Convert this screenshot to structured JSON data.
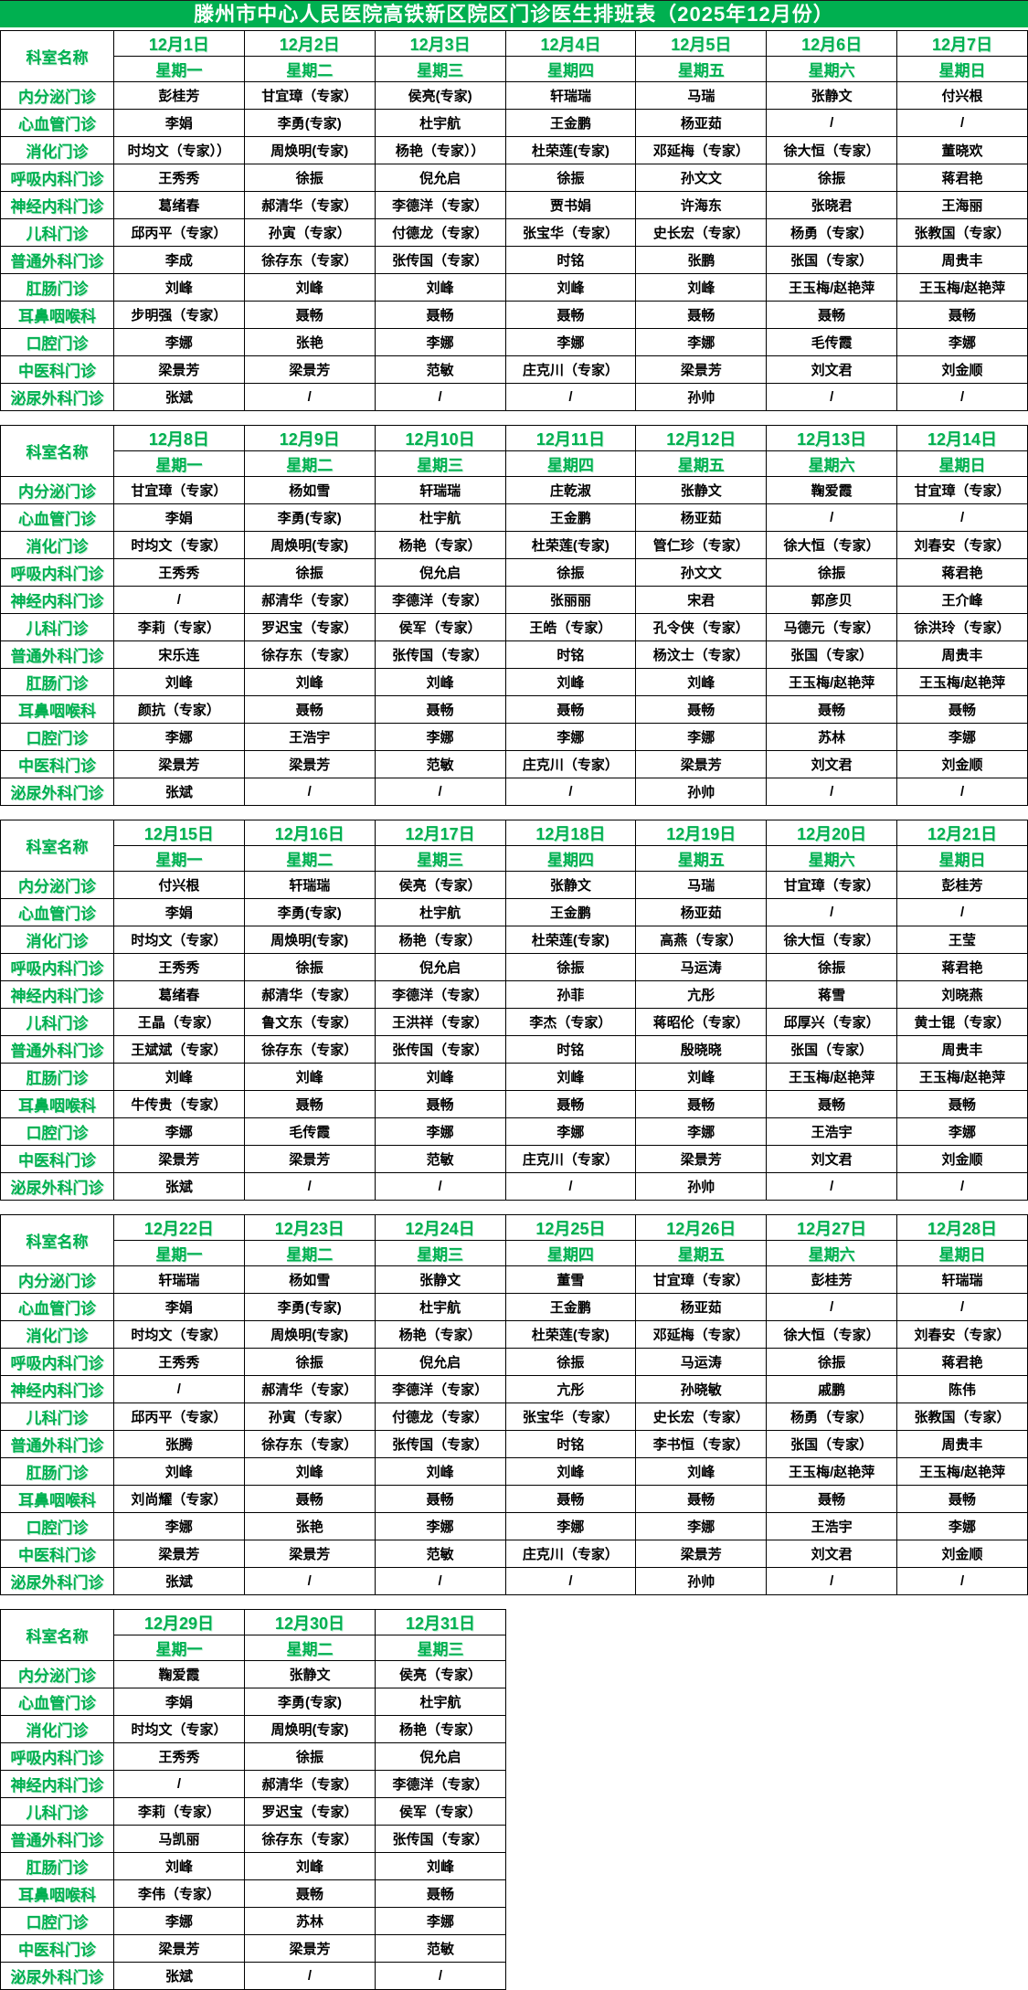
{
  "title": "滕州市中心人民医院高铁新区院区门诊医生排班表（2025年12月份）",
  "corner_header": "科室名称",
  "accent_color": "#00B050",
  "departments": [
    "内分泌门诊",
    "心血管门诊",
    "消化门诊",
    "呼吸内科门诊",
    "神经内科门诊",
    "儿科门诊",
    "普通外科门诊",
    "肛肠门诊",
    "耳鼻咽喉科",
    "口腔门诊",
    "中医科门诊",
    "泌尿外科门诊"
  ],
  "weeks": [
    {
      "days": [
        {
          "date": "12月1日",
          "weekday": "星期一"
        },
        {
          "date": "12月2日",
          "weekday": "星期二"
        },
        {
          "date": "12月3日",
          "weekday": "星期三"
        },
        {
          "date": "12月4日",
          "weekday": "星期四"
        },
        {
          "date": "12月5日",
          "weekday": "星期五"
        },
        {
          "date": "12月6日",
          "weekday": "星期六"
        },
        {
          "date": "12月7日",
          "weekday": "星期日"
        }
      ],
      "rows": [
        [
          "彭桂芳",
          "甘宜璋（专家）",
          "侯亮(专家)",
          "轩瑞瑞",
          "马瑞",
          "张静文",
          "付兴根"
        ],
        [
          "李娟",
          "李勇(专家)",
          "杜宇航",
          "王金鹏",
          "杨亚茹",
          "/",
          "/"
        ],
        [
          "时均文（专家））",
          "周焕明(专家)",
          "杨艳（专家））",
          "杜荣莲(专家)",
          "邓延梅（专家）",
          "徐大恒（专家）",
          "董晓欢"
        ],
        [
          "王秀秀",
          "徐振",
          "倪允启",
          "徐振",
          "孙文文",
          "徐振",
          "蒋君艳"
        ],
        [
          "葛绪春",
          "郝清华（专家）",
          "李德洋（专家）",
          "贾书娟",
          "许海东",
          "张晓君",
          "王海丽"
        ],
        [
          "邱丙平（专家）",
          "孙寅（专家）",
          "付德龙（专家）",
          "张宝华（专家）",
          "史长宏（专家）",
          "杨勇（专家）",
          "张教国（专家）"
        ],
        [
          "李成",
          "徐存东（专家）",
          "张传国（专家）",
          "时铭",
          "张鹏",
          "张国（专家）",
          "周贵丰"
        ],
        [
          "刘峰",
          "刘峰",
          "刘峰",
          "刘峰",
          "刘峰",
          "王玉梅/赵艳萍",
          "王玉梅/赵艳萍"
        ],
        [
          "步明强（专家）",
          "聂畅",
          "聂畅",
          "聂畅",
          "聂畅",
          "聂畅",
          "聂畅"
        ],
        [
          "李娜",
          "张艳",
          "李娜",
          "李娜",
          "李娜",
          "毛传霞",
          "李娜"
        ],
        [
          "梁景芳",
          "梁景芳",
          "范敏",
          "庄克川（专家）",
          "梁景芳",
          "刘文君",
          "刘金顺"
        ],
        [
          "张斌",
          "/",
          "/",
          "/",
          "孙帅",
          "/",
          "/"
        ]
      ]
    },
    {
      "days": [
        {
          "date": "12月8日",
          "weekday": "星期一"
        },
        {
          "date": "12月9日",
          "weekday": "星期二"
        },
        {
          "date": "12月10日",
          "weekday": "星期三"
        },
        {
          "date": "12月11日",
          "weekday": "星期四"
        },
        {
          "date": "12月12日",
          "weekday": "星期五"
        },
        {
          "date": "12月13日",
          "weekday": "星期六"
        },
        {
          "date": "12月14日",
          "weekday": "星期日"
        }
      ],
      "rows": [
        [
          "甘宜璋（专家）",
          "杨如雪",
          "轩瑞瑞",
          "庄乾淑",
          "张静文",
          "鞠爱霞",
          "甘宜璋（专家）"
        ],
        [
          "李娟",
          "李勇(专家)",
          "杜宇航",
          "王金鹏",
          "杨亚茹",
          "/",
          "/"
        ],
        [
          "时均文（专家）",
          "周焕明(专家)",
          "杨艳（专家）",
          "杜荣莲(专家)",
          "管仁珍（专家）",
          "徐大恒（专家）",
          "刘春安（专家）"
        ],
        [
          "王秀秀",
          "徐振",
          "倪允启",
          "徐振",
          "孙文文",
          "徐振",
          "蒋君艳"
        ],
        [
          "/",
          "郝清华（专家）",
          "李德洋（专家）",
          "张丽丽",
          "宋君",
          "郭彦贝",
          "王介峰"
        ],
        [
          "李莉（专家）",
          "罗迟宝（专家）",
          "侯军（专家）",
          "王皓（专家）",
          "孔令侠（专家）",
          "马德元（专家）",
          "徐洪玲（专家）"
        ],
        [
          "宋乐连",
          "徐存东（专家）",
          "张传国（专家）",
          "时铭",
          "杨汶士（专家）",
          "张国（专家）",
          "周贵丰"
        ],
        [
          "刘峰",
          "刘峰",
          "刘峰",
          "刘峰",
          "刘峰",
          "王玉梅/赵艳萍",
          "王玉梅/赵艳萍"
        ],
        [
          "颜抗（专家）",
          "聂畅",
          "聂畅",
          "聂畅",
          "聂畅",
          "聂畅",
          "聂畅"
        ],
        [
          "李娜",
          "王浩宇",
          "李娜",
          "李娜",
          "李娜",
          "苏林",
          "李娜"
        ],
        [
          "梁景芳",
          "梁景芳",
          "范敏",
          "庄克川（专家）",
          "梁景芳",
          "刘文君",
          "刘金顺"
        ],
        [
          "张斌",
          "/",
          "/",
          "/",
          "孙帅",
          "/",
          "/"
        ]
      ]
    },
    {
      "days": [
        {
          "date": "12月15日",
          "weekday": "星期一"
        },
        {
          "date": "12月16日",
          "weekday": "星期二"
        },
        {
          "date": "12月17日",
          "weekday": "星期三"
        },
        {
          "date": "12月18日",
          "weekday": "星期四"
        },
        {
          "date": "12月19日",
          "weekday": "星期五"
        },
        {
          "date": "12月20日",
          "weekday": "星期六"
        },
        {
          "date": "12月21日",
          "weekday": "星期日"
        }
      ],
      "rows": [
        [
          "付兴根",
          "轩瑞瑞",
          "侯亮（专家）",
          "张静文",
          "马瑞",
          "甘宜璋（专家）",
          "彭桂芳"
        ],
        [
          "李娟",
          "李勇(专家)",
          "杜宇航",
          "王金鹏",
          "杨亚茹",
          "/",
          "/"
        ],
        [
          "时均文（专家）",
          "周焕明(专家)",
          "杨艳（专家）",
          "杜荣莲(专家)",
          "高燕（专家）",
          "徐大恒（专家）",
          "王莹"
        ],
        [
          "王秀秀",
          "徐振",
          "倪允启",
          "徐振",
          "马运涛",
          "徐振",
          "蒋君艳"
        ],
        [
          "葛绪春",
          "郝清华（专家）",
          "李德洋（专家）",
          "孙菲",
          "亢彤",
          "蒋雪",
          "刘晓燕"
        ],
        [
          "王晶（专家）",
          "鲁文东（专家）",
          "王洪祥（专家）",
          "李杰（专家）",
          "蒋昭伦（专家）",
          "邱厚兴（专家）",
          "黄士锟（专家）"
        ],
        [
          "王斌斌（专家）",
          "徐存东（专家）",
          "张传国（专家）",
          "时铭",
          "殷晓晓",
          "张国（专家）",
          "周贵丰"
        ],
        [
          "刘峰",
          "刘峰",
          "刘峰",
          "刘峰",
          "刘峰",
          "王玉梅/赵艳萍",
          "王玉梅/赵艳萍"
        ],
        [
          "牛传贵（专家）",
          "聂畅",
          "聂畅",
          "聂畅",
          "聂畅",
          "聂畅",
          "聂畅"
        ],
        [
          "李娜",
          "毛传霞",
          "李娜",
          "李娜",
          "李娜",
          "王浩宇",
          "李娜"
        ],
        [
          "梁景芳",
          "梁景芳",
          "范敏",
          "庄克川（专家）",
          "梁景芳",
          "刘文君",
          "刘金顺"
        ],
        [
          "张斌",
          "/",
          "/",
          "/",
          "孙帅",
          "/",
          "/"
        ]
      ]
    },
    {
      "days": [
        {
          "date": "12月22日",
          "weekday": "星期一"
        },
        {
          "date": "12月23日",
          "weekday": "星期二"
        },
        {
          "date": "12月24日",
          "weekday": "星期三"
        },
        {
          "date": "12月25日",
          "weekday": "星期四"
        },
        {
          "date": "12月26日",
          "weekday": "星期五"
        },
        {
          "date": "12月27日",
          "weekday": "星期六"
        },
        {
          "date": "12月28日",
          "weekday": "星期日"
        }
      ],
      "rows": [
        [
          "轩瑞瑞",
          "杨如雪",
          "张静文",
          "董雪",
          "甘宜璋（专家）",
          "彭桂芳",
          "轩瑞瑞"
        ],
        [
          "李娟",
          "李勇(专家)",
          "杜宇航",
          "王金鹏",
          "杨亚茹",
          "/",
          "/"
        ],
        [
          "时均文（专家）",
          "周焕明(专家)",
          "杨艳（专家）",
          "杜荣莲(专家)",
          "邓延梅（专家）",
          "徐大恒（专家）",
          "刘春安（专家）"
        ],
        [
          "王秀秀",
          "徐振",
          "倪允启",
          "徐振",
          "马运涛",
          "徐振",
          "蒋君艳"
        ],
        [
          "/",
          "郝清华（专家）",
          "李德洋（专家）",
          "亢彤",
          "孙晓敏",
          "戚鹏",
          "陈伟"
        ],
        [
          "邱丙平（专家）",
          "孙寅（专家）",
          "付德龙（专家）",
          "张宝华（专家）",
          "史长宏（专家）",
          "杨勇（专家）",
          "张教国（专家）"
        ],
        [
          "张腾",
          "徐存东（专家）",
          "张传国（专家）",
          "时铭",
          "李书恒（专家）",
          "张国（专家）",
          "周贵丰"
        ],
        [
          "刘峰",
          "刘峰",
          "刘峰",
          "刘峰",
          "刘峰",
          "王玉梅/赵艳萍",
          "王玉梅/赵艳萍"
        ],
        [
          "刘尚耀（专家）",
          "聂畅",
          "聂畅",
          "聂畅",
          "聂畅",
          "聂畅",
          "聂畅"
        ],
        [
          "李娜",
          "张艳",
          "李娜",
          "李娜",
          "李娜",
          "王浩宇",
          "李娜"
        ],
        [
          "梁景芳",
          "梁景芳",
          "范敏",
          "庄克川（专家）",
          "梁景芳",
          "刘文君",
          "刘金顺"
        ],
        [
          "张斌",
          "/",
          "/",
          "/",
          "孙帅",
          "/",
          "/"
        ]
      ]
    },
    {
      "days": [
        {
          "date": "12月29日",
          "weekday": "星期一"
        },
        {
          "date": "12月30日",
          "weekday": "星期二"
        },
        {
          "date": "12月31日",
          "weekday": "星期三"
        }
      ],
      "rows": [
        [
          "鞠爱霞",
          "张静文",
          "侯亮（专家）"
        ],
        [
          "李娟",
          "李勇(专家)",
          "杜宇航"
        ],
        [
          "时均文（专家）",
          "周焕明(专家)",
          "杨艳（专家）"
        ],
        [
          "王秀秀",
          "徐振",
          "倪允启"
        ],
        [
          "/",
          "郝清华（专家）",
          "李德洋（专家）"
        ],
        [
          "李莉（专家）",
          "罗迟宝（专家）",
          "侯军（专家）"
        ],
        [
          "马凯丽",
          "徐存东（专家）",
          "张传国（专家）"
        ],
        [
          "刘峰",
          "刘峰",
          "刘峰"
        ],
        [
          "李伟（专家）",
          "聂畅",
          "聂畅"
        ],
        [
          "李娜",
          "苏林",
          "李娜"
        ],
        [
          "梁景芳",
          "梁景芳",
          "范敏"
        ],
        [
          "张斌",
          "/",
          "/"
        ]
      ]
    }
  ]
}
